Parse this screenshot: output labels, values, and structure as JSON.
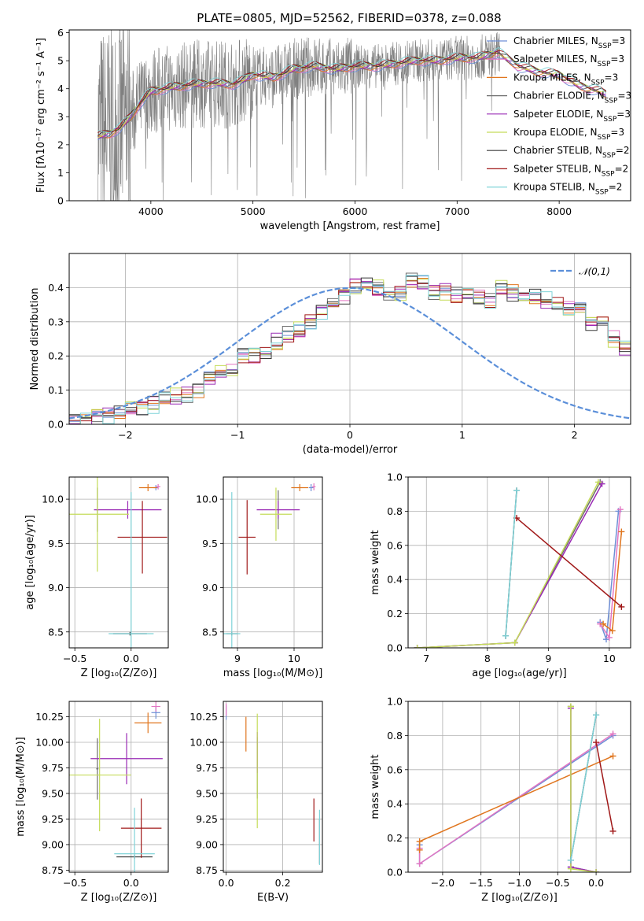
{
  "figure": {
    "title": "PLATE=0805, MJD=52562, FIBERID=0378, z=0.088"
  },
  "models": [
    {
      "name": "Chabrier MILES",
      "nssp": "3",
      "color": "#6f8fd6"
    },
    {
      "name": "Salpeter MILES",
      "nssp": "3",
      "color": "#e376c2"
    },
    {
      "name": "Kroupa MILES",
      "nssp": "3",
      "color": "#e0761f"
    },
    {
      "name": "Chabrier ELODIE",
      "nssp": "3",
      "color": "#6e6e6e"
    },
    {
      "name": "Salpeter ELODIE",
      "nssp": "3",
      "color": "#9a2bb5"
    },
    {
      "name": "Kroupa ELODIE",
      "nssp": "3",
      "color": "#c5dc5a"
    },
    {
      "name": "Chabrier STELIB",
      "nssp": "2",
      "color": "#3a3a3a"
    },
    {
      "name": "Salpeter STELIB",
      "nssp": "2",
      "color": "#a01818"
    },
    {
      "name": "Kroupa STELIB",
      "nssp": "2",
      "color": "#7fd3d8"
    }
  ],
  "chart_data": [
    {
      "id": "spectrum",
      "type": "line",
      "title": "PLATE=0805, MJD=52562, FIBERID=0378, z=0.088",
      "xlabel": "wavelength [Angstrom, rest frame]",
      "ylabel": "Flux [fλ10⁻¹⁷ erg cm⁻² s⁻¹ A⁻¹]",
      "xlim": [
        3200,
        8700
      ],
      "ylim": [
        0,
        6.1
      ],
      "xticks": [
        4000,
        5000,
        6000,
        7000,
        8000
      ],
      "yticks": [
        0,
        1,
        2,
        3,
        4,
        5,
        6
      ],
      "data_color": "#808080",
      "data_range": [
        3480,
        7420
      ],
      "model_range": [
        3480,
        8460
      ],
      "continuum": [
        [
          3480,
          2.3
        ],
        [
          3600,
          2.4
        ],
        [
          3700,
          2.6
        ],
        [
          3800,
          3.0
        ],
        [
          3900,
          3.5
        ],
        [
          4000,
          3.9
        ],
        [
          4200,
          4.05
        ],
        [
          4400,
          4.15
        ],
        [
          4600,
          4.2
        ],
        [
          4800,
          4.15
        ],
        [
          4900,
          4.3
        ],
        [
          5000,
          4.5
        ],
        [
          5200,
          4.4
        ],
        [
          5400,
          4.7
        ],
        [
          5600,
          4.8
        ],
        [
          5800,
          4.7
        ],
        [
          6000,
          4.8
        ],
        [
          6200,
          4.8
        ],
        [
          6400,
          4.9
        ],
        [
          6600,
          5.0
        ],
        [
          6800,
          5.0
        ],
        [
          7000,
          5.1
        ],
        [
          7200,
          5.1
        ],
        [
          7400,
          5.3
        ],
        [
          7600,
          4.8
        ],
        [
          7800,
          4.6
        ],
        [
          8000,
          4.5
        ],
        [
          8200,
          4.1
        ],
        [
          8400,
          3.9
        ],
        [
          8460,
          3.8
        ]
      ],
      "legend": "upper-right"
    },
    {
      "id": "residuals",
      "type": "step",
      "xlabel": "(data-model)/error",
      "ylabel": "Normed distribution",
      "xlim": [
        -2.5,
        2.5
      ],
      "ylim": [
        0,
        0.5
      ],
      "xticks": [
        -2,
        -1,
        0,
        1,
        2
      ],
      "yticks": [
        0.0,
        0.1,
        0.2,
        0.3,
        0.4
      ],
      "bins": {
        "start": -2.5,
        "width": 0.1
      },
      "hist": [
        0.01,
        0.02,
        0.03,
        0.03,
        0.04,
        0.04,
        0.05,
        0.06,
        0.07,
        0.08,
        0.09,
        0.1,
        0.13,
        0.15,
        0.16,
        0.2,
        0.2,
        0.21,
        0.24,
        0.26,
        0.27,
        0.3,
        0.33,
        0.35,
        0.38,
        0.4,
        0.41,
        0.4,
        0.38,
        0.39,
        0.42,
        0.41,
        0.39,
        0.39,
        0.38,
        0.38,
        0.37,
        0.36,
        0.4,
        0.39,
        0.37,
        0.38,
        0.36,
        0.36,
        0.34,
        0.34,
        0.3,
        0.3,
        0.25,
        0.22,
        0.21,
        0.19,
        0.18,
        0.17,
        0.15,
        0.14,
        0.12,
        0.1,
        0.09,
        0.08,
        0.07,
        0.06,
        0.06,
        0.05,
        0.05,
        0.04,
        0.04,
        0.03,
        0.02,
        0.02
      ],
      "normal_label": "𝒩(0,1)",
      "normal_color": "#5b8fd9",
      "legend": "upper-right"
    },
    {
      "id": "age-vs-Z",
      "type": "errorbar",
      "xlabel": "Z [log₁₀(Z/Z⊙)]",
      "ylabel": "age  [log₁₀(age/yr)]",
      "xlim": [
        -0.55,
        0.33
      ],
      "ylim": [
        8.32,
        10.25
      ],
      "xticks": [
        -0.5,
        0.0
      ],
      "yticks": [
        8.5,
        9.0,
        9.5,
        10.0
      ],
      "points": [
        {
          "model": 0,
          "x": 0.22,
          "y": 10.13,
          "xerr": 0.02,
          "yerr": 0.03
        },
        {
          "model": 1,
          "x": 0.24,
          "y": 10.14,
          "xerr": 0.02,
          "yerr": 0.03
        },
        {
          "model": 2,
          "x": 0.15,
          "y": 10.13,
          "xerr": 0.08,
          "yerr": 0.04
        },
        {
          "model": 3,
          "x": -0.3,
          "y": 9.88,
          "xerr": 0.01,
          "yerr": 0.25
        },
        {
          "model": 4,
          "x": -0.03,
          "y": 9.88,
          "xerr": 0.3,
          "yerr": 0.1
        },
        {
          "model": 5,
          "x": -0.3,
          "y": 9.83,
          "xerr": 0.28,
          "yerr": 0.65
        },
        {
          "model": 6,
          "x": -0.01,
          "y": 8.48,
          "xerr": 0.15,
          "yerr": 0.02
        },
        {
          "model": 7,
          "x": 0.1,
          "y": 9.57,
          "xerr": 0.22,
          "yerr": 0.41
        },
        {
          "model": 8,
          "x": 0.0,
          "y": 8.48,
          "xerr": 0.2,
          "yerr": 1.6
        }
      ]
    },
    {
      "id": "age-vs-mass",
      "type": "errorbar",
      "xlabel": "mass [log₁₀(M/M⊙)]",
      "ylabel": "",
      "xlim": [
        8.75,
        10.5
      ],
      "ylim": [
        8.32,
        10.25
      ],
      "xticks": [
        9,
        10
      ],
      "yticks": [
        8.5,
        9.0,
        9.5,
        10.0
      ],
      "points": [
        {
          "model": 0,
          "x": 10.3,
          "y": 10.13,
          "xerr": 0.04,
          "yerr": 0.04
        },
        {
          "model": 1,
          "x": 10.35,
          "y": 10.14,
          "xerr": 0.03,
          "yerr": 0.04
        },
        {
          "model": 2,
          "x": 10.1,
          "y": 10.13,
          "xerr": 0.15,
          "yerr": 0.04
        },
        {
          "model": 3,
          "x": 9.72,
          "y": 9.88,
          "xerr": 0.01,
          "yerr": 0.22
        },
        {
          "model": 4,
          "x": 9.72,
          "y": 9.88,
          "xerr": 0.38,
          "yerr": 0.1
        },
        {
          "model": 5,
          "x": 9.68,
          "y": 9.83,
          "xerr": 0.28,
          "yerr": 0.3
        },
        {
          "model": 6,
          "x": 8.9,
          "y": 8.48,
          "xerr": 0.1,
          "yerr": 0.02
        },
        {
          "model": 7,
          "x": 9.17,
          "y": 9.57,
          "xerr": 0.15,
          "yerr": 0.42
        },
        {
          "model": 8,
          "x": 8.9,
          "y": 8.48,
          "xerr": 0.15,
          "yerr": 1.6
        }
      ]
    },
    {
      "id": "weight-vs-age",
      "type": "line",
      "xlabel": "age  [log₁₀(age/yr)]",
      "ylabel": "mass weight",
      "xlim": [
        6.7,
        10.35
      ],
      "ylim": [
        0,
        1.0
      ],
      "xticks": [
        7,
        8,
        9,
        10
      ],
      "yticks": [
        0.0,
        0.2,
        0.4,
        0.6,
        0.8,
        1.0
      ],
      "series": [
        {
          "model": 0,
          "x": [
            9.85,
            9.95,
            10.15
          ],
          "y": [
            0.15,
            0.05,
            0.8
          ]
        },
        {
          "model": 1,
          "x": [
            9.85,
            10.0,
            10.18
          ],
          "y": [
            0.14,
            0.06,
            0.81
          ]
        },
        {
          "model": 2,
          "x": [
            9.9,
            10.05,
            10.2
          ],
          "y": [
            0.14,
            0.1,
            0.68
          ]
        },
        {
          "model": 3,
          "x": [
            6.85,
            8.45,
            9.85
          ],
          "y": [
            0.0,
            0.03,
            0.97
          ]
        },
        {
          "model": 4,
          "x": [
            6.85,
            8.45,
            9.88
          ],
          "y": [
            0.0,
            0.03,
            0.96
          ]
        },
        {
          "model": 5,
          "x": [
            6.85,
            8.45,
            9.82
          ],
          "y": [
            0.0,
            0.03,
            0.97
          ]
        },
        {
          "model": 6,
          "x": [
            8.3,
            8.48
          ],
          "y": [
            0.07,
            0.92
          ]
        },
        {
          "model": 7,
          "x": [
            8.48,
            10.2
          ],
          "y": [
            0.76,
            0.24
          ]
        },
        {
          "model": 8,
          "x": [
            8.3,
            8.48
          ],
          "y": [
            0.07,
            0.92
          ]
        }
      ]
    },
    {
      "id": "mass-vs-Z",
      "type": "errorbar",
      "xlabel": "Z [log₁₀(Z/Z⊙)]",
      "ylabel": "mass [log₁₀(M/M⊙)]",
      "xlim": [
        -0.55,
        0.33
      ],
      "ylim": [
        8.73,
        10.4
      ],
      "xticks": [
        -0.5,
        0.0
      ],
      "yticks": [
        8.75,
        9.0,
        9.25,
        9.5,
        9.75,
        10.0,
        10.25
      ],
      "points": [
        {
          "model": 0,
          "x": 0.22,
          "y": 10.29,
          "xerr": 0.04,
          "yerr": 0.06
        },
        {
          "model": 1,
          "x": 0.22,
          "y": 10.35,
          "xerr": 0.04,
          "yerr": 0.05
        },
        {
          "model": 2,
          "x": 0.15,
          "y": 10.19,
          "xerr": 0.12,
          "yerr": 0.1
        },
        {
          "model": 3,
          "x": -0.3,
          "y": 9.74,
          "xerr": 0.01,
          "yerr": 0.3
        },
        {
          "model": 4,
          "x": -0.04,
          "y": 9.84,
          "xerr": 0.32,
          "yerr": 0.25
        },
        {
          "model": 5,
          "x": -0.28,
          "y": 9.68,
          "xerr": 0.28,
          "yerr": 0.55
        },
        {
          "model": 6,
          "x": 0.03,
          "y": 8.88,
          "xerr": 0.16,
          "yerr": 0.02
        },
        {
          "model": 7,
          "x": 0.09,
          "y": 9.16,
          "xerr": 0.18,
          "yerr": 0.29
        },
        {
          "model": 8,
          "x": 0.03,
          "y": 8.91,
          "xerr": 0.18,
          "yerr": 0.45
        }
      ]
    },
    {
      "id": "mass-vs-EBV",
      "type": "errorbar",
      "xlabel": "E(B-V)",
      "ylabel": "",
      "xlim": [
        -0.01,
        0.34
      ],
      "ylim": [
        8.73,
        10.4
      ],
      "xticks": [
        0.0,
        0.2
      ],
      "yticks": [
        8.75,
        9.0,
        9.25,
        9.5,
        9.75,
        10.0,
        10.25
      ],
      "points": [
        {
          "model": 0,
          "x": 0.0,
          "y": 10.29,
          "xerr": 0.0,
          "yerr": 0.07
        },
        {
          "model": 1,
          "x": 0.0,
          "y": 10.32,
          "xerr": 0.0,
          "yerr": 0.06
        },
        {
          "model": 2,
          "x": 0.07,
          "y": 10.08,
          "xerr": 0.0,
          "yerr": 0.17
        },
        {
          "model": 3,
          "x": 0.11,
          "y": 9.75,
          "xerr": 0.0,
          "yerr": 0.3
        },
        {
          "model": 4,
          "x": 0.11,
          "y": 9.9,
          "xerr": 0.0,
          "yerr": 0.2
        },
        {
          "model": 5,
          "x": 0.11,
          "y": 9.72,
          "xerr": 0.0,
          "yerr": 0.56
        },
        {
          "model": 6,
          "x": 0.33,
          "y": 9.03,
          "xerr": 0.0,
          "yerr": 0.22
        },
        {
          "model": 7,
          "x": 0.31,
          "y": 9.24,
          "xerr": 0.0,
          "yerr": 0.21
        },
        {
          "model": 8,
          "x": 0.33,
          "y": 9.07,
          "xerr": 0.0,
          "yerr": 0.27
        }
      ]
    },
    {
      "id": "weight-vs-Z",
      "type": "line",
      "xlabel": "Z [log₁₀(Z/Z⊙)]",
      "ylabel": "mass weight",
      "xlim": [
        -2.45,
        0.45
      ],
      "ylim": [
        0,
        1.0
      ],
      "xticks": [
        -2.0,
        -1.5,
        -1.0,
        -0.5,
        0.0
      ],
      "yticks": [
        0.0,
        0.2,
        0.4,
        0.6,
        0.8,
        1.0
      ],
      "series": [
        {
          "model": 0,
          "x": [
            -2.3,
            -2.3,
            0.22
          ],
          "y": [
            0.16,
            0.05,
            0.8
          ]
        },
        {
          "model": 1,
          "x": [
            -2.3,
            -2.3,
            0.22
          ],
          "y": [
            0.14,
            0.05,
            0.81
          ]
        },
        {
          "model": 2,
          "x": [
            -2.3,
            -2.3,
            0.22
          ],
          "y": [
            0.13,
            0.18,
            0.68
          ]
        },
        {
          "model": 3,
          "x": [
            -0.33,
            -0.33,
            0.0
          ],
          "y": [
            0.97,
            0.03,
            0.0
          ]
        },
        {
          "model": 4,
          "x": [
            -0.33,
            -0.33,
            0.0
          ],
          "y": [
            0.96,
            0.03,
            0.0
          ]
        },
        {
          "model": 5,
          "x": [
            -0.33,
            -0.33,
            0.0
          ],
          "y": [
            0.97,
            0.02,
            0.0
          ]
        },
        {
          "model": 6,
          "x": [
            -0.33,
            0.0
          ],
          "y": [
            0.07,
            0.92
          ]
        },
        {
          "model": 7,
          "x": [
            0.0,
            0.22
          ],
          "y": [
            0.76,
            0.24
          ]
        },
        {
          "model": 8,
          "x": [
            -0.33,
            0.0
          ],
          "y": [
            0.07,
            0.92
          ]
        }
      ]
    }
  ]
}
